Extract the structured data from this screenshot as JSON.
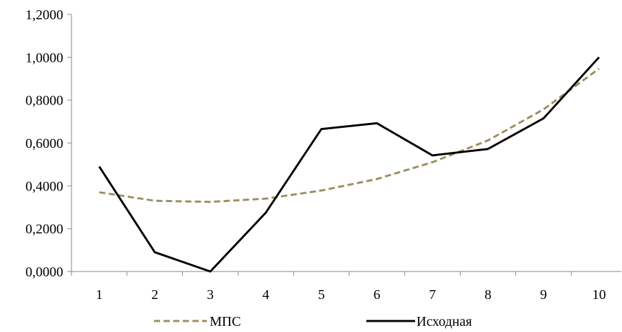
{
  "chart_data": {
    "type": "line",
    "title": "",
    "xlabel": "",
    "ylabel": "",
    "categories": [
      "1",
      "2",
      "3",
      "4",
      "5",
      "6",
      "7",
      "8",
      "9",
      "10"
    ],
    "ylim": [
      0,
      1.2
    ],
    "yticks": [
      0,
      0.2,
      0.4,
      0.6,
      0.8,
      1.0,
      1.2
    ],
    "ytick_labels": [
      "0,0000",
      "0,2000",
      "0,4000",
      "0,6000",
      "0,8000",
      "1,0000",
      "1,2000"
    ],
    "grid": false,
    "legend_position": "bottom",
    "series": [
      {
        "name": "МПС",
        "color": "#9a8f5e",
        "dash": "dashed",
        "values": [
          0.37,
          0.33,
          0.325,
          0.34,
          0.378,
          0.432,
          0.51,
          0.612,
          0.757,
          0.947
        ]
      },
      {
        "name": "Исходная",
        "color": "#000000",
        "dash": "solid",
        "values": [
          0.49,
          0.09,
          0.0,
          0.275,
          0.665,
          0.692,
          0.542,
          0.572,
          0.715,
          1.0
        ]
      }
    ]
  }
}
